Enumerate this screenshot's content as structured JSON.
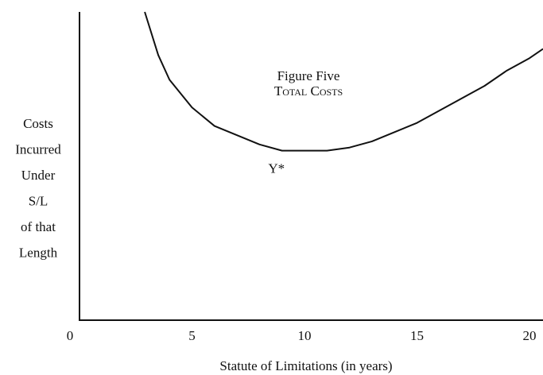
{
  "chart_data": {
    "type": "line",
    "title": "Figure Five",
    "subtitle": "Total Costs",
    "x_label": "Statute of Limitations (in years)",
    "y_label": [
      "Costs",
      "Incurred",
      "Under",
      "S/L",
      "of that",
      "Length"
    ],
    "annotation": "Y*",
    "x": [
      2.9,
      3.5,
      4,
      5,
      6,
      7,
      8,
      9,
      10,
      11,
      12,
      13,
      14,
      15,
      16,
      17,
      18,
      19,
      20,
      20.6
    ],
    "series": [
      {
        "name": "Total Costs",
        "color": "#111111",
        "values": [
          100,
          86,
          78,
          69,
          63,
          60,
          57,
          55,
          55,
          55,
          56,
          58,
          61,
          64,
          68,
          72,
          76,
          81,
          85,
          88
        ]
      }
    ],
    "xlim": [
      0,
      20.6
    ],
    "ylim": [
      0,
      100
    ],
    "xticks": [
      0,
      5,
      10,
      15,
      20
    ]
  }
}
